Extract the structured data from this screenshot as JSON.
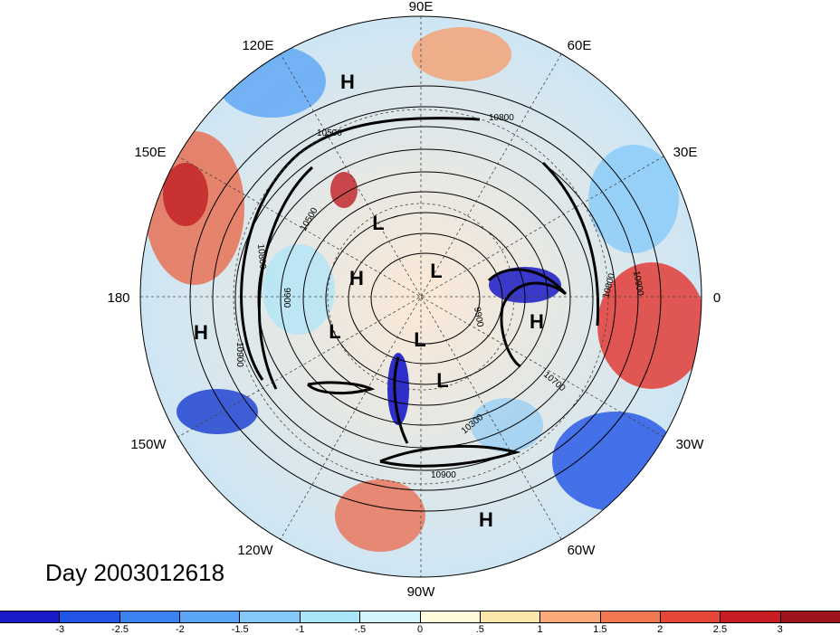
{
  "title": "Day 2003012618",
  "longitude_labels": [
    "90E",
    "60E",
    "30E",
    "0",
    "30W",
    "60W",
    "90W",
    "120W",
    "150W",
    "180",
    "150E",
    "120E"
  ],
  "pressure_centers": [
    "H",
    "H",
    "H",
    "H",
    "H",
    "L",
    "L",
    "L",
    "L",
    "L"
  ],
  "contour_labels": [
    "10800",
    "10500",
    "10900",
    "10700",
    "10300",
    "10900",
    "10900",
    "10800",
    "9900",
    "9900",
    "10800",
    "10500"
  ],
  "colorbar": {
    "ticks": [
      "-3",
      "-2.5",
      "-2",
      "-1.5",
      "-1",
      "-.5",
      "0",
      ".5",
      "1",
      "1.5",
      "2",
      "2.5",
      "3"
    ],
    "colors": [
      "#1a1ac8",
      "#2255e6",
      "#3c82f0",
      "#5aa5f5",
      "#82c8fa",
      "#aae6fa",
      "#d2f5fa",
      "#fffadc",
      "#fae6aa",
      "#faaa78",
      "#f07850",
      "#e64637",
      "#c81e23",
      "#a0141e"
    ]
  }
}
